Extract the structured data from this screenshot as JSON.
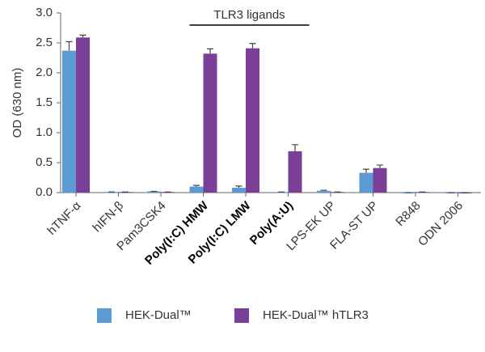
{
  "chart_data": {
    "type": "bar",
    "y_label": "OD (630 nm)",
    "annotation": {
      "text": "TLR3 ligands",
      "span": [
        3,
        5
      ]
    },
    "categories": [
      "hTNF-α",
      "hIFN-β",
      "Pam3CSK4",
      "Poly(I:C) HMW",
      "Poly(I:C) LMW",
      "Poly(A:U)",
      "LPS-EK UP",
      "FLA-ST UP",
      "R848",
      "ODN 2006"
    ],
    "bold_categories": [
      3,
      4,
      5
    ],
    "series": [
      {
        "name": "HEK-Dual™",
        "color": "#5b9bd5",
        "values": [
          2.37,
          0.01,
          0.02,
          0.1,
          0.08,
          0.01,
          0.03,
          0.33,
          0,
          0
        ],
        "errors": [
          0.15,
          0,
          0,
          0.02,
          0.03,
          0,
          0.01,
          0.06,
          0,
          0
        ]
      },
      {
        "name": "HEK-Dual™ hTLR3",
        "color": "#7b3f98",
        "values": [
          2.59,
          0.01,
          0.01,
          2.32,
          2.41,
          0.69,
          0.01,
          0.41,
          0.01,
          0
        ],
        "errors": [
          0.04,
          0,
          0,
          0.08,
          0.08,
          0.11,
          0,
          0.05,
          0,
          0
        ]
      }
    ],
    "ylim": [
      0,
      3
    ],
    "yticks": [
      {
        "value": 0,
        "label": "0.0"
      },
      {
        "value": 0.5,
        "label": "0.5"
      },
      {
        "value": 1,
        "label": "1.0"
      },
      {
        "value": 1.5,
        "label": "1.5"
      },
      {
        "value": 2,
        "label": "2.0"
      },
      {
        "value": 2.5,
        "label": "2.5"
      },
      {
        "value": 3,
        "label": "3.0"
      }
    ],
    "legend": "bottom"
  }
}
